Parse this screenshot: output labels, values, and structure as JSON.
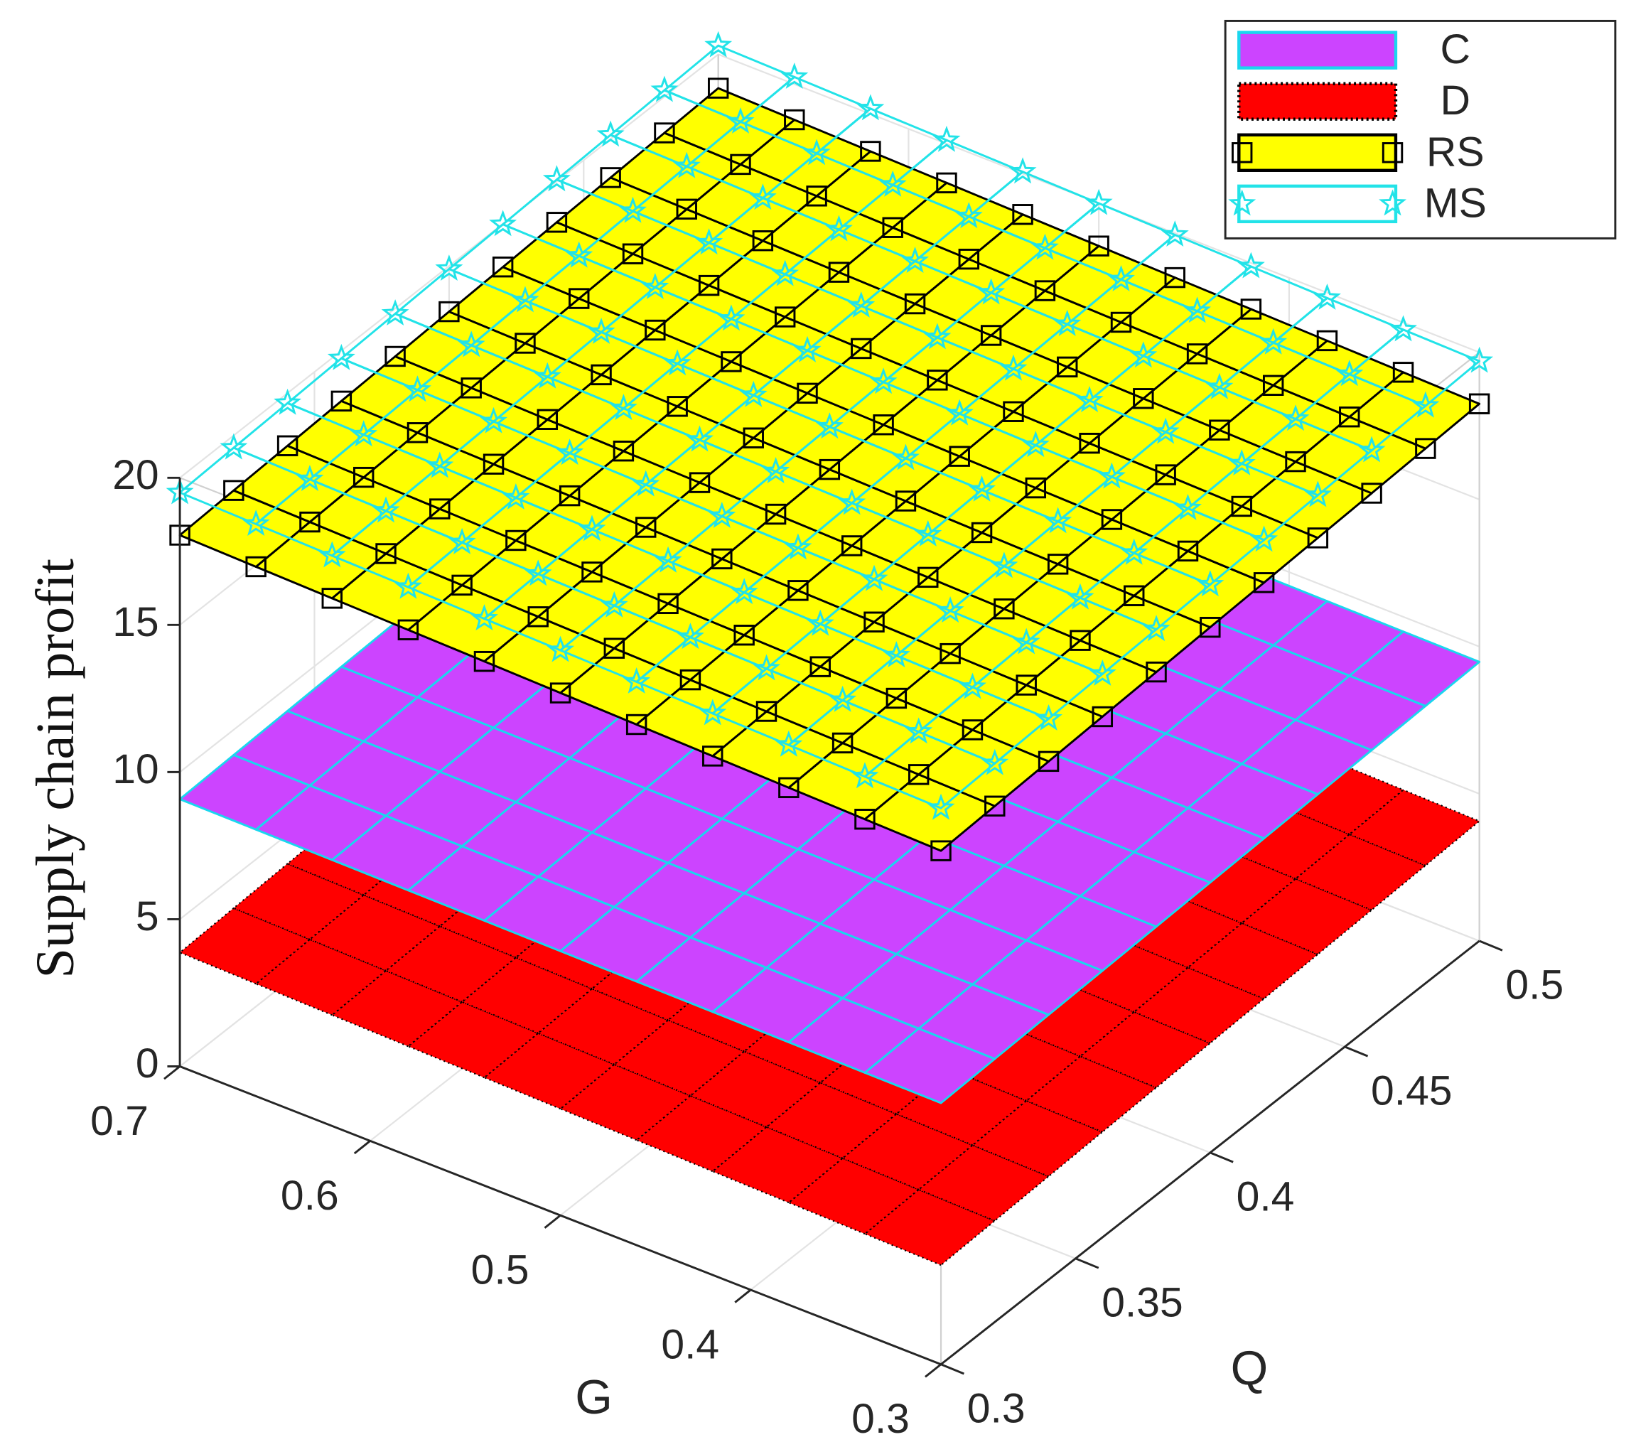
{
  "chart_data": {
    "type": "surface3d",
    "zlabel": "Supply chain profit",
    "xlabel": "G",
    "ylabel": "Q",
    "x": [
      0.3,
      0.34,
      0.38,
      0.42,
      0.46,
      0.5,
      0.54,
      0.58,
      0.62,
      0.66,
      0.7
    ],
    "y": [
      0.3,
      0.32,
      0.34,
      0.36,
      0.38,
      0.4,
      0.42,
      0.44,
      0.46,
      0.48,
      0.5
    ],
    "xlim": [
      0.3,
      0.7
    ],
    "ylim": [
      0.3,
      0.5
    ],
    "zlim": [
      0,
      20
    ],
    "xticks": [
      0.3,
      0.4,
      0.5,
      0.6,
      0.7
    ],
    "yticks": [
      0.3,
      0.35,
      0.4,
      0.45,
      0.5
    ],
    "zticks": [
      0,
      5,
      10,
      15,
      20
    ],
    "grid": true,
    "legend": "upper-right",
    "series": [
      {
        "name": "C",
        "face_color": "#cc44ff",
        "edge_color": "#1ad6ee",
        "edge_style": "solid",
        "marker": "none",
        "marker_color": "none",
        "z": [
          [
            8.88,
            8.9,
            8.92,
            8.94,
            8.96,
            8.98,
            9,
            9.02,
            9.04,
            9.06,
            9.08
          ],
          [
            8.94,
            8.96,
            8.98,
            9,
            9.02,
            9.04,
            9.06,
            9.08,
            9.1,
            9.12,
            9.14
          ],
          [
            9,
            9.02,
            9.04,
            9.06,
            9.08,
            9.1,
            9.12,
            9.14,
            9.16,
            9.18,
            9.2
          ],
          [
            9.06,
            9.08,
            9.1,
            9.12,
            9.14,
            9.16,
            9.18,
            9.2,
            9.22,
            9.24,
            9.26
          ],
          [
            9.12,
            9.14,
            9.16,
            9.18,
            9.2,
            9.22,
            9.24,
            9.26,
            9.28,
            9.3,
            9.32
          ],
          [
            9.18,
            9.2,
            9.22,
            9.24,
            9.26,
            9.28,
            9.3,
            9.32,
            9.34,
            9.36,
            9.38
          ],
          [
            9.24,
            9.26,
            9.28,
            9.3,
            9.32,
            9.34,
            9.36,
            9.38,
            9.4,
            9.42,
            9.44
          ],
          [
            9.3,
            9.32,
            9.34,
            9.36,
            9.38,
            9.4,
            9.42,
            9.44,
            9.46,
            9.48,
            9.5
          ],
          [
            9.36,
            9.38,
            9.4,
            9.42,
            9.44,
            9.46,
            9.48,
            9.5,
            9.52,
            9.54,
            9.56
          ],
          [
            9.42,
            9.44,
            9.46,
            9.48,
            9.5,
            9.52,
            9.54,
            9.56,
            9.58,
            9.6,
            9.62
          ],
          [
            9.48,
            9.5,
            9.52,
            9.54,
            9.56,
            9.58,
            9.6,
            9.62,
            9.64,
            9.66,
            9.68
          ]
        ]
      },
      {
        "name": "D",
        "face_color": "#ff0000",
        "edge_color": "#000000",
        "edge_style": "dotted",
        "marker": "none",
        "marker_color": "none",
        "z": [
          [
            3.37,
            3.42,
            3.47,
            3.52,
            3.57,
            3.62,
            3.67,
            3.72,
            3.77,
            3.82,
            3.87
          ],
          [
            3.44,
            3.49,
            3.54,
            3.59,
            3.64,
            3.69,
            3.74,
            3.79,
            3.84,
            3.89,
            3.94
          ],
          [
            3.51,
            3.56,
            3.61,
            3.66,
            3.71,
            3.76,
            3.81,
            3.86,
            3.91,
            3.96,
            4.01
          ],
          [
            3.58,
            3.63,
            3.68,
            3.73,
            3.78,
            3.83,
            3.88,
            3.93,
            3.98,
            4.03,
            4.08
          ],
          [
            3.65,
            3.7,
            3.75,
            3.8,
            3.85,
            3.9,
            3.95,
            4,
            4.05,
            4.1,
            4.15
          ],
          [
            3.72,
            3.77,
            3.82,
            3.87,
            3.92,
            3.97,
            4.02,
            4.07,
            4.12,
            4.17,
            4.22
          ],
          [
            3.79,
            3.84,
            3.89,
            3.94,
            3.99,
            4.04,
            4.09,
            4.14,
            4.19,
            4.24,
            4.29
          ],
          [
            3.86,
            3.91,
            3.96,
            4.01,
            4.06,
            4.11,
            4.16,
            4.21,
            4.26,
            4.31,
            4.36
          ],
          [
            3.93,
            3.98,
            4.03,
            4.08,
            4.13,
            4.18,
            4.23,
            4.28,
            4.33,
            4.38,
            4.43
          ],
          [
            4,
            4.05,
            4.1,
            4.15,
            4.2,
            4.25,
            4.3,
            4.35,
            4.4,
            4.45,
            4.5
          ],
          [
            4.07,
            4.12,
            4.17,
            4.22,
            4.27,
            4.32,
            4.37,
            4.42,
            4.47,
            4.52,
            4.57
          ]
        ]
      },
      {
        "name": "RS",
        "face_color": "#ffff00",
        "edge_color": "#000000",
        "edge_style": "solid",
        "marker": "square",
        "marker_color": "#000000",
        "z": [
          [
            17.45,
            17.51,
            17.57,
            17.63,
            17.69,
            17.75,
            17.81,
            17.87,
            17.93,
            17.99,
            18.05
          ],
          [
            17.53,
            17.59,
            17.65,
            17.71,
            17.77,
            17.83,
            17.89,
            17.95,
            18.01,
            18.07,
            18.13
          ],
          [
            17.61,
            17.67,
            17.73,
            17.79,
            17.85,
            17.91,
            17.97,
            18.03,
            18.09,
            18.15,
            18.21
          ],
          [
            17.69,
            17.75,
            17.81,
            17.87,
            17.93,
            17.99,
            18.05,
            18.11,
            18.17,
            18.23,
            18.29
          ],
          [
            17.77,
            17.83,
            17.89,
            17.95,
            18.01,
            18.07,
            18.13,
            18.19,
            18.25,
            18.31,
            18.37
          ],
          [
            17.85,
            17.91,
            17.97,
            18.03,
            18.09,
            18.15,
            18.21,
            18.27,
            18.33,
            18.39,
            18.45
          ],
          [
            17.93,
            17.99,
            18.05,
            18.11,
            18.17,
            18.23,
            18.29,
            18.35,
            18.41,
            18.47,
            18.53
          ],
          [
            18.01,
            18.07,
            18.13,
            18.19,
            18.25,
            18.31,
            18.37,
            18.43,
            18.49,
            18.55,
            18.61
          ],
          [
            18.09,
            18.15,
            18.21,
            18.27,
            18.33,
            18.39,
            18.45,
            18.51,
            18.57,
            18.63,
            18.69
          ],
          [
            18.17,
            18.23,
            18.29,
            18.35,
            18.41,
            18.47,
            18.53,
            18.59,
            18.65,
            18.71,
            18.77
          ],
          [
            18.25,
            18.31,
            18.37,
            18.43,
            18.49,
            18.55,
            18.61,
            18.67,
            18.73,
            18.79,
            18.85
          ]
        ]
      },
      {
        "name": "MS",
        "face_color": "none",
        "edge_color": "#22e3e8",
        "edge_style": "solid",
        "marker": "star",
        "marker_color": "#22e3e8",
        "z": [
          [
            18.9,
            18.96,
            19.02,
            19.08,
            19.14,
            19.2,
            19.26,
            19.32,
            19.38,
            19.44,
            19.5
          ],
          [
            18.98,
            19.04,
            19.1,
            19.16,
            19.22,
            19.28,
            19.34,
            19.4,
            19.46,
            19.52,
            19.58
          ],
          [
            19.06,
            19.12,
            19.18,
            19.24,
            19.3,
            19.36,
            19.42,
            19.48,
            19.54,
            19.6,
            19.66
          ],
          [
            19.14,
            19.2,
            19.26,
            19.32,
            19.38,
            19.44,
            19.5,
            19.56,
            19.62,
            19.68,
            19.74
          ],
          [
            19.22,
            19.28,
            19.34,
            19.4,
            19.46,
            19.52,
            19.58,
            19.64,
            19.7,
            19.76,
            19.82
          ],
          [
            19.3,
            19.36,
            19.42,
            19.48,
            19.54,
            19.6,
            19.66,
            19.72,
            19.78,
            19.84,
            19.9
          ],
          [
            19.38,
            19.44,
            19.5,
            19.56,
            19.62,
            19.68,
            19.74,
            19.8,
            19.86,
            19.92,
            19.98
          ],
          [
            19.46,
            19.52,
            19.58,
            19.64,
            19.7,
            19.76,
            19.82,
            19.88,
            19.94,
            20,
            20.06
          ],
          [
            19.54,
            19.6,
            19.66,
            19.72,
            19.78,
            19.84,
            19.9,
            19.96,
            20.02,
            20.08,
            20.14
          ],
          [
            19.62,
            19.68,
            19.74,
            19.8,
            19.86,
            19.92,
            19.98,
            20.04,
            20.1,
            20.16,
            20.22
          ],
          [
            19.7,
            19.76,
            19.82,
            19.88,
            19.94,
            20,
            20.06,
            20.12,
            20.18,
            20.24,
            20.3
          ]
        ]
      }
    ]
  }
}
